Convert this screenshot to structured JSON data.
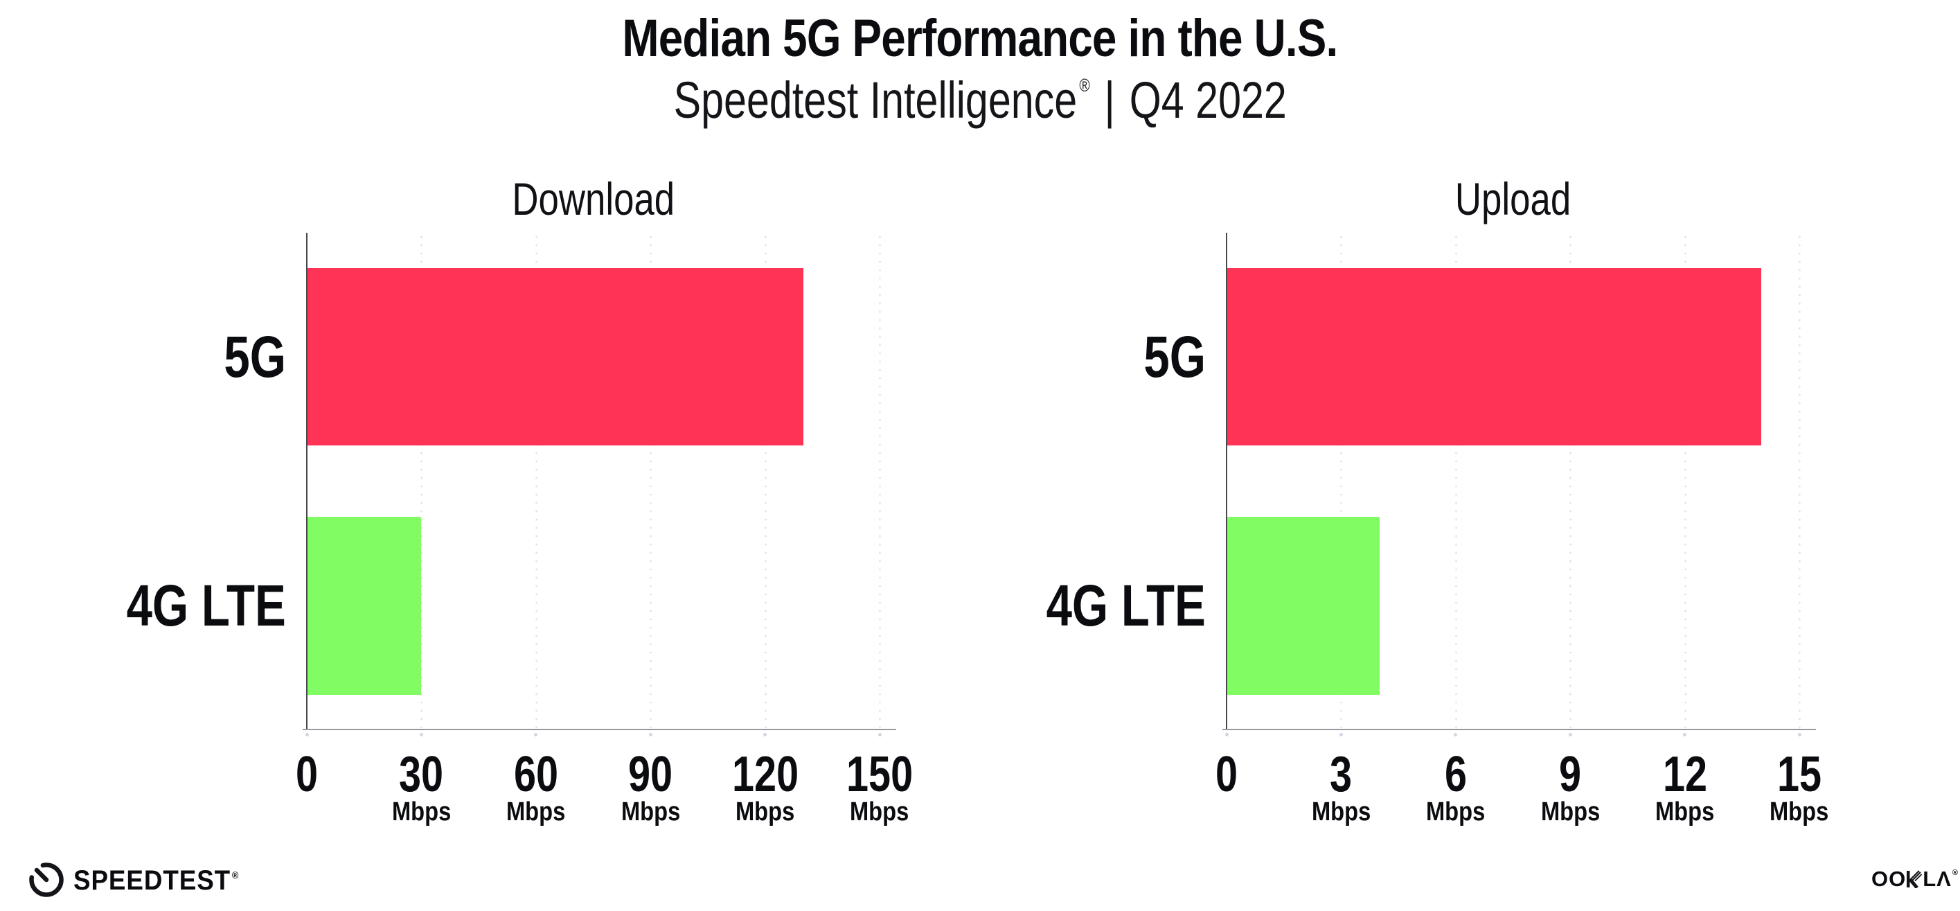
{
  "header": {
    "title": "Median 5G Performance in the U.S.",
    "subtitle_brand": "Speedtest Intelligence",
    "subtitle_reg": "®",
    "subtitle_sep": "|",
    "subtitle_period": "Q4 2022"
  },
  "colors": {
    "bar_5g": "#FF3356",
    "bar_4g_lte": "#81FC63",
    "gridline": "#E0E0EC",
    "y_axis": "#47474E",
    "x_axis": "#97979C",
    "text": "#0B0C0F"
  },
  "chart_data": [
    {
      "type": "bar",
      "orientation": "horizontal",
      "title": "Download",
      "categories": [
        "5G",
        "4G LTE"
      ],
      "values": [
        130,
        30
      ],
      "unit": "Mbps",
      "xlabel": "",
      "ylabel": "",
      "xlim": [
        0,
        150
      ],
      "xticks": [
        0,
        30,
        60,
        90,
        120,
        150
      ],
      "grid": "vertical dotted gridlines at ticks",
      "legend": "none",
      "bar_colors": [
        "#FF3356",
        "#81FC63"
      ]
    },
    {
      "type": "bar",
      "orientation": "horizontal",
      "title": "Upload",
      "categories": [
        "5G",
        "4G LTE"
      ],
      "values": [
        14,
        4
      ],
      "unit": "Mbps",
      "xlabel": "",
      "ylabel": "",
      "xlim": [
        0,
        15
      ],
      "xticks": [
        0,
        3,
        6,
        9,
        12,
        15
      ],
      "grid": "vertical dotted gridlines at ticks",
      "legend": "none",
      "bar_colors": [
        "#FF3356",
        "#81FC63"
      ]
    }
  ],
  "footer": {
    "speedtest_logo_text": "SPEEDTEST",
    "speedtest_reg": "®",
    "ookla_logo_left": "OO",
    "ookla_logo_right": "LΛ",
    "ookla_reg": "®"
  }
}
